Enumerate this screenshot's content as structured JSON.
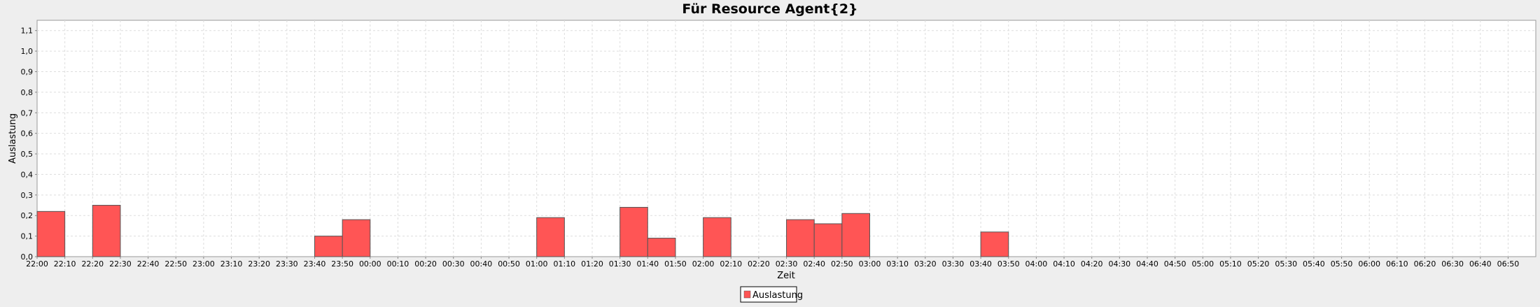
{
  "chart_data": {
    "type": "bar",
    "title": "Für Resource Agent{2}",
    "xlabel": "Zeit",
    "ylabel": "Auslastung",
    "ylim": [
      0,
      1.15
    ],
    "yticks": [
      "0,0",
      "0,1",
      "0,2",
      "0,3",
      "0,4",
      "0,5",
      "0,6",
      "0,7",
      "0,8",
      "0,9",
      "1,0",
      "1,1"
    ],
    "grid": true,
    "legend_position": "bottom",
    "bar_color": "#ff5555",
    "categories": [
      "22:00",
      "22:10",
      "22:20",
      "22:30",
      "22:40",
      "22:50",
      "23:00",
      "23:10",
      "23:20",
      "23:30",
      "23:40",
      "23:50",
      "00:00",
      "00:10",
      "00:20",
      "00:30",
      "00:40",
      "00:50",
      "01:00",
      "01:10",
      "01:20",
      "01:30",
      "01:40",
      "01:50",
      "02:00",
      "02:10",
      "02:20",
      "02:30",
      "02:40",
      "02:50",
      "03:00",
      "03:10",
      "03:20",
      "03:30",
      "03:40",
      "03:50",
      "04:00",
      "04:10",
      "04:20",
      "04:30",
      "04:40",
      "04:50",
      "05:00",
      "05:10",
      "05:20",
      "05:30",
      "05:40",
      "05:50",
      "06:00",
      "06:10",
      "06:20",
      "06:30",
      "06:40",
      "06:50"
    ],
    "series": [
      {
        "name": "Auslastung",
        "values": [
          0.22,
          0,
          0.25,
          0,
          0,
          0,
          0,
          0,
          0,
          0,
          0.1,
          0.18,
          0,
          0,
          0,
          0,
          0,
          0,
          0.19,
          0,
          0,
          0.24,
          0.09,
          0,
          0.19,
          0,
          0,
          0.18,
          0.16,
          0.21,
          0,
          0,
          0,
          0,
          0.12,
          0,
          0,
          0,
          0,
          0,
          0,
          0,
          0,
          0,
          0,
          0,
          0,
          0,
          0,
          0,
          0,
          0,
          0,
          0
        ]
      }
    ]
  }
}
